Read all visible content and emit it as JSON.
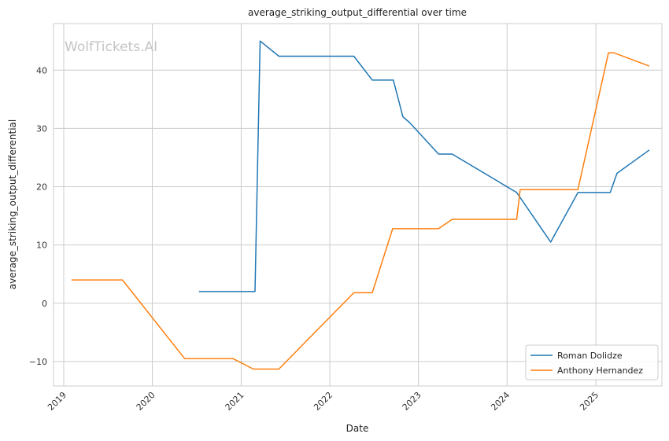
{
  "watermark": "WolfTickets.AI",
  "chart_data": {
    "type": "line",
    "title": "average_striking_output_differential over time",
    "xlabel": "Date",
    "ylabel": "average_striking_output_differential",
    "x_axis_type": "date",
    "xlim": [
      "2018-11-20",
      "2025-09-30"
    ],
    "ylim": [
      -14.2,
      48
    ],
    "x_ticks": [
      "2019",
      "2020",
      "2021",
      "2022",
      "2023",
      "2024",
      "2025"
    ],
    "y_ticks": [
      -10,
      0,
      10,
      20,
      30,
      40
    ],
    "grid": true,
    "legend_position": "bottom-right",
    "colors": {
      "Roman Dolidze": "#1f77b4",
      "Anthony Hernandez": "#ff7f0e"
    },
    "series": [
      {
        "name": "Roman Dolidze",
        "points": [
          [
            "2020-07-11",
            2.0
          ],
          [
            "2021-02-27",
            2.0
          ],
          [
            "2021-03-20",
            45.0
          ],
          [
            "2021-06-05",
            42.4
          ],
          [
            "2022-04-10",
            42.4
          ],
          [
            "2022-06-25",
            38.3
          ],
          [
            "2022-09-20",
            38.3
          ],
          [
            "2022-10-29",
            32.0
          ],
          [
            "2022-11-26",
            31.0
          ],
          [
            "2023-03-25",
            25.6
          ],
          [
            "2023-05-20",
            25.6
          ],
          [
            "2024-02-10",
            19.0
          ],
          [
            "2024-06-29",
            10.5
          ],
          [
            "2024-10-19",
            19.0
          ],
          [
            "2025-03-01",
            19.0
          ],
          [
            "2025-03-29",
            22.3
          ],
          [
            "2025-08-09",
            26.3
          ]
        ]
      },
      {
        "name": "Anthony Hernandez",
        "points": [
          [
            "2019-02-02",
            4.0
          ],
          [
            "2019-08-31",
            4.0
          ],
          [
            "2020-05-13",
            -9.5
          ],
          [
            "2020-11-28",
            -9.5
          ],
          [
            "2021-02-20",
            -11.3
          ],
          [
            "2021-06-05",
            -11.3
          ],
          [
            "2022-04-10",
            1.8
          ],
          [
            "2022-06-25",
            1.8
          ],
          [
            "2022-09-17",
            12.8
          ],
          [
            "2023-03-25",
            12.8
          ],
          [
            "2023-05-20",
            14.4
          ],
          [
            "2024-02-10",
            14.4
          ],
          [
            "2024-02-24",
            19.5
          ],
          [
            "2024-10-19",
            19.5
          ],
          [
            "2025-02-22",
            43.0
          ],
          [
            "2025-03-15",
            43.0
          ],
          [
            "2025-08-09",
            40.7
          ]
        ]
      }
    ]
  }
}
